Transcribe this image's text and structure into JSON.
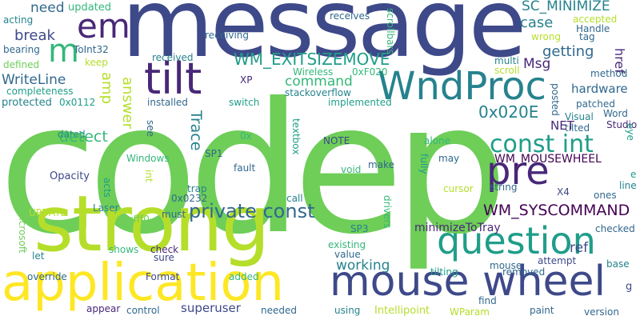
{
  "words": {
    "codep": "codep",
    "message": "message",
    "strong": "strong",
    "application": "application",
    "mouse_wheel": "mouse wheel",
    "question": "question",
    "tilt": "tilt",
    "wndproc": "WndProc",
    "pre": "pre",
    "em": "em",
    "m": "m",
    "const_int": "const int",
    "private_const": "private const",
    "wm_exitsizemove": "WM_EXITSIZEMOVE",
    "wm_syscommand": "WM_SYSCOMMAND",
    "sc_minimize": "SC_MINIMIZE",
    "writeline": "WriteLine",
    "break": "break",
    "need": "need",
    "updated": "updated",
    "acting": "acting",
    "bearing": "bearing",
    "defined": "defined",
    "completeness": "completeness",
    "protected": "protected",
    "hex_0112": "0x0112",
    "dated": "dated",
    "detect": "detect",
    "upon": "upon",
    "opacity": "Opacity",
    "update": "UPDATE",
    "microsoft": "Microsoft",
    "let": "let",
    "override": "override",
    "appear": "appear",
    "toint32": "ToInt32",
    "keep": "keep",
    "amp": "amp",
    "answer": "answer",
    "received": "received",
    "receiving": "receiving",
    "xp": "XP",
    "wireless": "Wireless",
    "hex_f020": "0xF020",
    "receives": "receives",
    "scrollbars": "scrollbars",
    "accepted": "accepted",
    "handle": "Handle",
    "tag": "tag",
    "wrong": "wrong",
    "case": "case",
    "msg": "Msg",
    "href": "href",
    "getting": "getting",
    "multi": "multi",
    "scroll": "scroll",
    "method": "method",
    "command": "command",
    "hardware": "hardware",
    "posted": "posted",
    "patched": "patched",
    "word": "Word",
    "visual": "Visual",
    "studio": "Studio",
    "tilted": "tilted",
    "net": "NET",
    "eye": "eye",
    "hex_020e": "0x020E",
    "stackoverflow": "stackoverflow",
    "implemented": "implemented",
    "switch": "switch",
    "installed": "installed",
    "trace": "Trace",
    "see": "see",
    "windows": "Windows",
    "int": "int",
    "acts": "acts",
    "sp1": "SP1",
    "ox": "0x",
    "fault": "fault",
    "textbox": "textbox",
    "note": "NOTE",
    "alone": "alone",
    "fully": "fully",
    "may": "may",
    "make": "make",
    "void": "void",
    "wm_mousewheel": "WM_MOUSEWHEEL",
    "e": "e",
    "line": "line",
    "x4": "X4",
    "string": "string",
    "ones": "ones",
    "trap": "trap",
    "hex_0232": "0x0232",
    "laser": "Laser",
    "hex_fff0": "0xfff0",
    "must": "must",
    "call": "call",
    "drivers": "drivers",
    "cursor": "cursor",
    "value": "value",
    "sp3": "SP3",
    "minimizetotray": "minimizeToTray",
    "checked": "checked",
    "working": "working",
    "existing": "existing",
    "ref": "ref",
    "base": "base",
    "shows": "shows",
    "check": "check",
    "sure": "sure",
    "format": "Format",
    "added": "added",
    "control": "control",
    "superuser": "superuser",
    "needed": "needed",
    "tilting": "tilting",
    "mouse": "mouse",
    "removed": "removed",
    "attempt": "attempt",
    "find": "find",
    "paint": "paint",
    "using": "using",
    "intellipoint": "Intellipoint",
    "wparam": "WParam",
    "version": "version",
    "g": "g"
  }
}
